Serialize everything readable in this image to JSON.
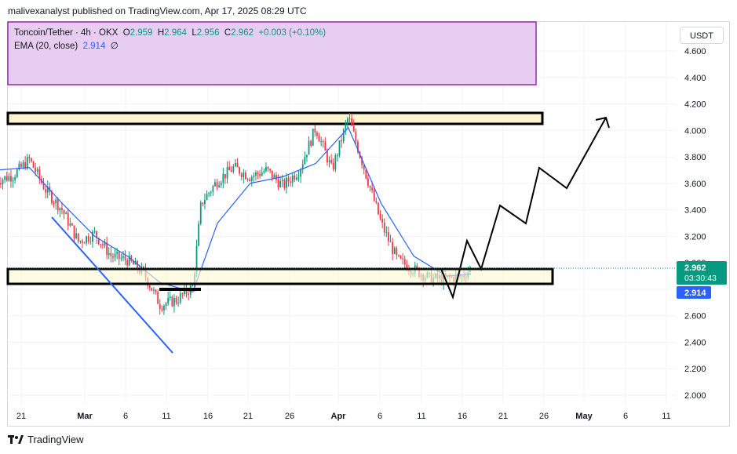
{
  "header": {
    "publisher_line": "malivexanalyst published on TradingView.com, Apr 17, 2025 08:29 UTC"
  },
  "legend": {
    "symbol": "Toncoin/Tether · 4h · OKX",
    "open_label": "O",
    "open": "2.959",
    "high_label": "H",
    "high": "2.964",
    "low_label": "L",
    "low": "2.956",
    "close_label": "C",
    "close": "2.962",
    "change": "+0.003 (+0.10%)",
    "ema_label": "EMA (20, close)",
    "ema_value": "2.914",
    "ema_extra": "∅"
  },
  "currency_button": "USDT",
  "price_badge": {
    "price": "2.962",
    "countdown": "03:30:43",
    "ema": "2.914"
  },
  "footer": {
    "brand": "TradingView"
  },
  "colors": {
    "up": "#089981",
    "down": "#f23645",
    "ema": "#2962ff",
    "zone_fill": "#fff6d0",
    "purple_zone": "#e7cdf0",
    "purple_border": "#9c27b0",
    "trendline": "#2962ff"
  },
  "chart_data": {
    "type": "line",
    "title": "Toncoin/Tether · 4h · OKX",
    "ylabel": "USDT",
    "ylim": [
      1.9,
      4.7
    ],
    "y_ticks": [
      "4.600",
      "4.400",
      "4.200",
      "4.000",
      "3.800",
      "3.600",
      "3.400",
      "3.200",
      "3.000",
      "2.800",
      "2.600",
      "2.400",
      "2.200",
      "2.000"
    ],
    "x_ticks": [
      "21",
      "Mar",
      "6",
      "11",
      "16",
      "21",
      "26",
      "Apr",
      "6",
      "11",
      "16",
      "21",
      "26",
      "May",
      "6",
      "11"
    ],
    "grid": true,
    "series": [
      {
        "name": "Toncoin/Tether",
        "note": "approximate closing price path (4h candles)",
        "x": [
          "Feb 18",
          "Feb 20",
          "Feb 22",
          "Feb 24",
          "Feb 26",
          "Feb 28",
          "Mar 2",
          "Mar 4",
          "Mar 6",
          "Mar 8",
          "Mar 10",
          "Mar 12",
          "Mar 14",
          "Mar 15",
          "Mar 17",
          "Mar 19",
          "Mar 21",
          "Mar 23",
          "Mar 25",
          "Mar 27",
          "Mar 29",
          "Mar 31",
          "Apr 2",
          "Apr 4",
          "Apr 6",
          "Apr 8",
          "Apr 10",
          "Apr 12",
          "Apr 14",
          "Apr 16",
          "Apr 17"
        ],
        "values": [
          3.62,
          3.66,
          3.78,
          3.55,
          3.4,
          3.16,
          3.22,
          3.05,
          3.02,
          2.92,
          2.68,
          2.72,
          2.82,
          3.45,
          3.62,
          3.72,
          3.65,
          3.7,
          3.58,
          3.7,
          4.02,
          3.7,
          4.1,
          3.7,
          3.3,
          3.02,
          2.95,
          2.88,
          2.88,
          2.9,
          2.962
        ]
      },
      {
        "name": "EMA (20, close)",
        "x": [
          "Feb 18",
          "Feb 22",
          "Feb 26",
          "Mar 2",
          "Mar 6",
          "Mar 10",
          "Mar 14",
          "Mar 17",
          "Mar 21",
          "Mar 25",
          "Mar 29",
          "Apr 2",
          "Apr 6",
          "Apr 10",
          "Apr 14",
          "Apr 17"
        ],
        "values": [
          3.7,
          3.72,
          3.45,
          3.2,
          3.05,
          2.85,
          2.78,
          3.3,
          3.6,
          3.65,
          3.75,
          4.02,
          3.45,
          3.05,
          2.9,
          2.914
        ]
      }
    ],
    "annotations": {
      "resistance_zone": [
        4.06,
        4.14
      ],
      "support_zone": [
        2.84,
        2.95
      ],
      "small_level": 2.79,
      "projection_path": [
        [
          "Apr 15",
          2.74
        ],
        [
          "Apr 17",
          3.17
        ],
        [
          "Apr 18",
          2.95
        ],
        [
          "Apr 21",
          3.43
        ],
        [
          "Apr 24",
          3.3
        ],
        [
          "Apr 25",
          3.72
        ],
        [
          "Apr 29",
          3.57
        ],
        [
          "May 3",
          4.11
        ]
      ],
      "downtrend_line": [
        [
          "Feb 23",
          3.35
        ],
        [
          "Mar 11",
          2.32
        ]
      ]
    }
  }
}
